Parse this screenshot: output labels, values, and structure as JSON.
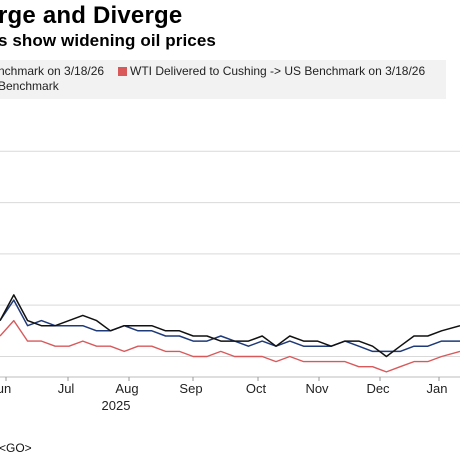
{
  "header": {
    "title": "rge and Diverge",
    "subtitle": "s show widening oil prices"
  },
  "footer": {
    "link": "<GO>"
  },
  "colors": {
    "black_series": "#111111",
    "blue_series": "#1f3a78",
    "red_series": "#d9595b",
    "legend_bg": "#f2f2f2",
    "grid": "#d9d9d9"
  },
  "chart_data": {
    "type": "line",
    "xlabel": "",
    "ylabel": "",
    "legend_position": "top",
    "grid": true,
    "x_ticks": [
      "un",
      "Jul",
      "Aug",
      "Sep",
      "Oct",
      "Nov",
      "Dec",
      "Jan"
    ],
    "x_year_label": "2025",
    "legend": [
      {
        "label": "nchmark on 3/18/26",
        "color": "#111111"
      },
      {
        "label": "WTI Delivered to Cushing -> US Benchmark on 3/18/26",
        "color": "#d9595b"
      },
      {
        "label": "Benchmark",
        "color": "#1f3a78"
      }
    ],
    "x": [
      0,
      0.03,
      0.06,
      0.09,
      0.12,
      0.15,
      0.18,
      0.21,
      0.24,
      0.27,
      0.3,
      0.33,
      0.36,
      0.39,
      0.42,
      0.45,
      0.48,
      0.51,
      0.54,
      0.57,
      0.6,
      0.63,
      0.66,
      0.69,
      0.72,
      0.75,
      0.78,
      0.81,
      0.84,
      0.87,
      0.9,
      0.93,
      0.96,
      1.0
    ],
    "series": [
      {
        "color": "#111111",
        "values": [
          67,
          72,
          67,
          66,
          66,
          67,
          68,
          67,
          65,
          66,
          66,
          66,
          65,
          65,
          64,
          64,
          63,
          63,
          63,
          64,
          62,
          64,
          63,
          63,
          62,
          63,
          63,
          62,
          60,
          62,
          64,
          64,
          65,
          66
        ]
      },
      {
        "color": "#1f3a78",
        "values": [
          67,
          71,
          66,
          67,
          66,
          66,
          66,
          65,
          65,
          66,
          65,
          65,
          64,
          64,
          63,
          63,
          64,
          63,
          62,
          63,
          62,
          63,
          62,
          62,
          62,
          63,
          62,
          61,
          61,
          61,
          62,
          62,
          63,
          63
        ]
      },
      {
        "color": "#d9595b",
        "values": [
          64,
          67,
          63,
          63,
          62,
          62,
          63,
          62,
          62,
          61,
          62,
          62,
          61,
          61,
          60,
          60,
          61,
          60,
          60,
          60,
          59,
          60,
          59,
          59,
          59,
          59,
          58,
          58,
          57,
          58,
          59,
          59,
          60,
          61
        ]
      }
    ]
  }
}
